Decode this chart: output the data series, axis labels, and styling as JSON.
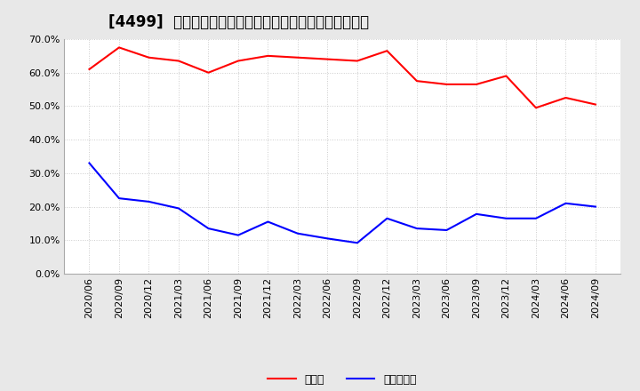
{
  "title": "[4499]  現預金、有利子負債の総資産に対する比率の推移",
  "x_labels": [
    "2020/06",
    "2020/09",
    "2020/12",
    "2021/03",
    "2021/06",
    "2021/09",
    "2021/12",
    "2022/03",
    "2022/06",
    "2022/09",
    "2022/12",
    "2023/03",
    "2023/06",
    "2023/09",
    "2023/12",
    "2024/03",
    "2024/06",
    "2024/09"
  ],
  "genkin": [
    0.61,
    0.675,
    0.645,
    0.635,
    0.6,
    0.635,
    0.65,
    0.645,
    0.64,
    0.635,
    0.665,
    0.575,
    0.565,
    0.565,
    0.59,
    0.495,
    0.525,
    0.505
  ],
  "yuri": [
    0.33,
    0.225,
    0.215,
    0.195,
    0.135,
    0.115,
    0.155,
    0.12,
    0.105,
    0.092,
    0.165,
    0.135,
    0.13,
    0.178,
    0.165,
    0.165,
    0.21,
    0.2
  ],
  "genkin_color": "#ff0000",
  "yuri_color": "#0000ff",
  "ylim": [
    0.0,
    0.7
  ],
  "yticks": [
    0.0,
    0.1,
    0.2,
    0.3,
    0.4,
    0.5,
    0.6,
    0.7
  ],
  "legend_genkin": "現預金",
  "legend_yuri": "有利子負債",
  "fig_bg_color": "#e8e8e8",
  "plot_bg_color": "#ffffff",
  "grid_color": "#cccccc",
  "title_fontsize": 12,
  "tick_fontsize": 8,
  "legend_fontsize": 9,
  "linewidth": 1.5
}
